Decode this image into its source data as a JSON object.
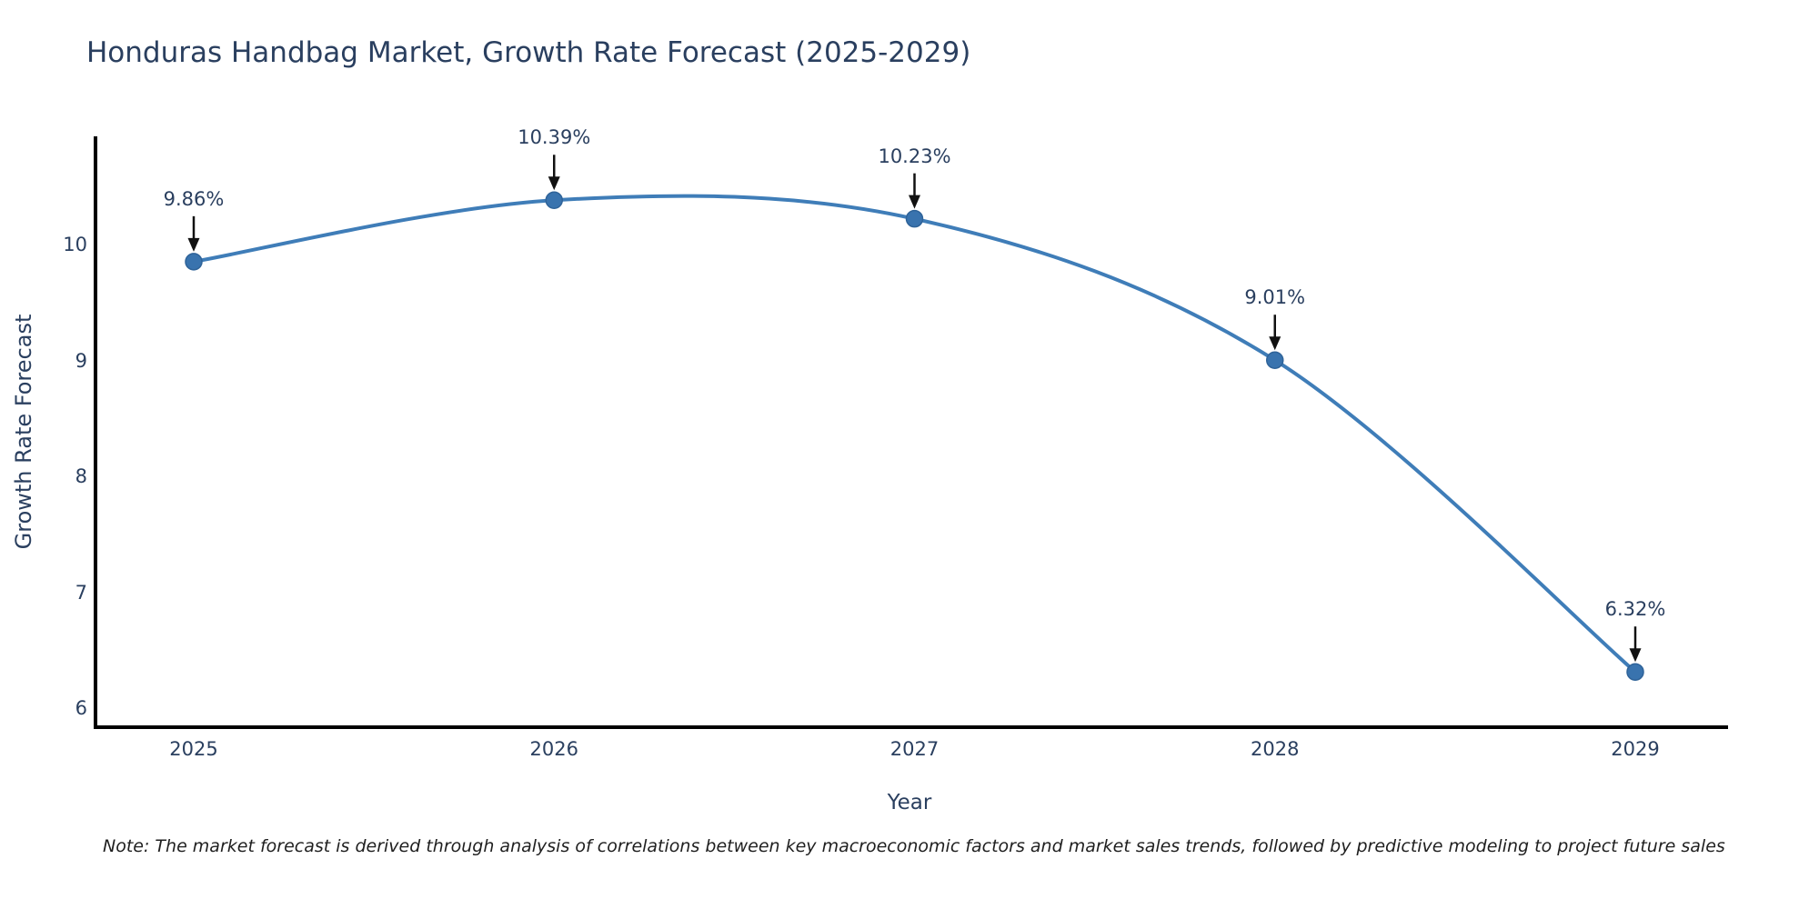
{
  "title": "Honduras Handbag Market, Growth Rate Forecast (2025-2029)",
  "note": "Note: The market forecast is derived through analysis of correlations between key macroeconomic factors and market sales trends, followed by predictive modeling to project future sales",
  "colors": {
    "text": "#2a3f5f",
    "line": "#3f7db8",
    "marker_fill": "#3973ae",
    "marker_edge": "#2f6399",
    "axis": "#000000",
    "arrow": "#111111",
    "note_text": "#1f1f1f",
    "background": "#ffffff"
  },
  "chart_data": {
    "type": "line",
    "title": "Honduras Handbag Market, Growth Rate Forecast (2025-2029)",
    "xlabel": "Year",
    "ylabel": "Growth Rate Forecast",
    "categories": [
      2025,
      2026,
      2027,
      2028,
      2029
    ],
    "values": [
      9.86,
      10.39,
      10.23,
      9.01,
      6.32
    ],
    "point_labels": [
      "9.86%",
      "10.39%",
      "10.23%",
      "9.01%",
      "6.32%"
    ],
    "y_ticks": [
      6,
      7,
      8,
      9,
      10
    ],
    "ylim": [
      5.84,
      11.08
    ],
    "line_shape": "spline",
    "grid": false,
    "legend": false,
    "annotations_have_arrows": true
  }
}
